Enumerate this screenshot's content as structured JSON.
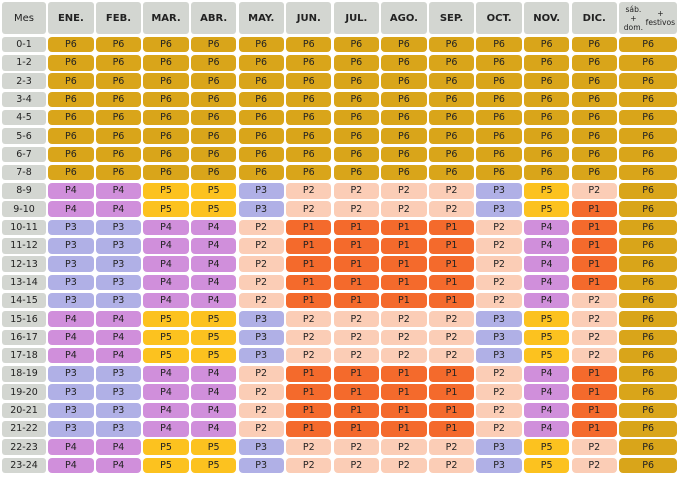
{
  "header": {
    "row_label": "Mes",
    "months": [
      "ENE.",
      "FEB.",
      "MAR.",
      "ABR.",
      "MAY.",
      "JUN.",
      "JUL.",
      "AGO.",
      "SEP.",
      "OCT.",
      "NOV.",
      "DIC."
    ],
    "weekend_line1": "sáb. + dom.",
    "weekend_line2": "+ festivos"
  },
  "colors": {
    "P1": "#f46a2c",
    "P2": "#fbcdb6",
    "P3": "#b0b0e6",
    "P4": "#d08fdb",
    "P5": "#fcc21f",
    "P6": "#d9a51a"
  },
  "hours": [
    "0-1",
    "1-2",
    "2-3",
    "3-4",
    "4-5",
    "5-6",
    "6-7",
    "7-8",
    "8-9",
    "9-10",
    "10-11",
    "11-12",
    "12-13",
    "13-14",
    "14-15",
    "15-16",
    "16-17",
    "17-18",
    "18-19",
    "19-20",
    "20-21",
    "21-22",
    "22-23",
    "23-24"
  ],
  "rows": [
    [
      "P6",
      "P6",
      "P6",
      "P6",
      "P6",
      "P6",
      "P6",
      "P6",
      "P6",
      "P6",
      "P6",
      "P6",
      "P6"
    ],
    [
      "P6",
      "P6",
      "P6",
      "P6",
      "P6",
      "P6",
      "P6",
      "P6",
      "P6",
      "P6",
      "P6",
      "P6",
      "P6"
    ],
    [
      "P6",
      "P6",
      "P6",
      "P6",
      "P6",
      "P6",
      "P6",
      "P6",
      "P6",
      "P6",
      "P6",
      "P6",
      "P6"
    ],
    [
      "P6",
      "P6",
      "P6",
      "P6",
      "P6",
      "P6",
      "P6",
      "P6",
      "P6",
      "P6",
      "P6",
      "P6",
      "P6"
    ],
    [
      "P6",
      "P6",
      "P6",
      "P6",
      "P6",
      "P6",
      "P6",
      "P6",
      "P6",
      "P6",
      "P6",
      "P6",
      "P6"
    ],
    [
      "P6",
      "P6",
      "P6",
      "P6",
      "P6",
      "P6",
      "P6",
      "P6",
      "P6",
      "P6",
      "P6",
      "P6",
      "P6"
    ],
    [
      "P6",
      "P6",
      "P6",
      "P6",
      "P6",
      "P6",
      "P6",
      "P6",
      "P6",
      "P6",
      "P6",
      "P6",
      "P6"
    ],
    [
      "P6",
      "P6",
      "P6",
      "P6",
      "P6",
      "P6",
      "P6",
      "P6",
      "P6",
      "P6",
      "P6",
      "P6",
      "P6"
    ],
    [
      "P4",
      "P4",
      "P5",
      "P5",
      "P3",
      "P2",
      "P2",
      "P2",
      "P2",
      "P3",
      "P5",
      "P2",
      "P6"
    ],
    [
      "P4",
      "P4",
      "P5",
      "P5",
      "P3",
      "P2",
      "P2",
      "P2",
      "P2",
      "P3",
      "P5",
      "P1",
      "P6"
    ],
    [
      "P3",
      "P3",
      "P4",
      "P4",
      "P2",
      "P1",
      "P1",
      "P1",
      "P1",
      "P2",
      "P4",
      "P1",
      "P6"
    ],
    [
      "P3",
      "P3",
      "P4",
      "P4",
      "P2",
      "P1",
      "P1",
      "P1",
      "P1",
      "P2",
      "P4",
      "P1",
      "P6"
    ],
    [
      "P3",
      "P3",
      "P4",
      "P4",
      "P2",
      "P1",
      "P1",
      "P1",
      "P1",
      "P2",
      "P4",
      "P1",
      "P6"
    ],
    [
      "P3",
      "P3",
      "P4",
      "P4",
      "P2",
      "P1",
      "P1",
      "P1",
      "P1",
      "P2",
      "P4",
      "P1",
      "P6"
    ],
    [
      "P3",
      "P3",
      "P4",
      "P4",
      "P2",
      "P1",
      "P1",
      "P1",
      "P1",
      "P2",
      "P4",
      "P2",
      "P6"
    ],
    [
      "P4",
      "P4",
      "P5",
      "P5",
      "P3",
      "P2",
      "P2",
      "P2",
      "P2",
      "P3",
      "P5",
      "P2",
      "P6"
    ],
    [
      "P4",
      "P4",
      "P5",
      "P5",
      "P3",
      "P2",
      "P2",
      "P2",
      "P2",
      "P3",
      "P5",
      "P2",
      "P6"
    ],
    [
      "P4",
      "P4",
      "P5",
      "P5",
      "P3",
      "P2",
      "P2",
      "P2",
      "P2",
      "P3",
      "P5",
      "P2",
      "P6"
    ],
    [
      "P3",
      "P3",
      "P4",
      "P4",
      "P2",
      "P1",
      "P1",
      "P1",
      "P1",
      "P2",
      "P4",
      "P1",
      "P6"
    ],
    [
      "P3",
      "P3",
      "P4",
      "P4",
      "P2",
      "P1",
      "P1",
      "P1",
      "P1",
      "P2",
      "P4",
      "P1",
      "P6"
    ],
    [
      "P3",
      "P3",
      "P4",
      "P4",
      "P2",
      "P1",
      "P1",
      "P1",
      "P1",
      "P2",
      "P4",
      "P1",
      "P6"
    ],
    [
      "P3",
      "P3",
      "P4",
      "P4",
      "P2",
      "P1",
      "P1",
      "P1",
      "P1",
      "P2",
      "P4",
      "P1",
      "P6"
    ],
    [
      "P4",
      "P4",
      "P5",
      "P5",
      "P3",
      "P2",
      "P2",
      "P2",
      "P2",
      "P3",
      "P5",
      "P2",
      "P6"
    ],
    [
      "P4",
      "P4",
      "P5",
      "P5",
      "P3",
      "P2",
      "P2",
      "P2",
      "P2",
      "P3",
      "P5",
      "P2",
      "P6"
    ]
  ]
}
